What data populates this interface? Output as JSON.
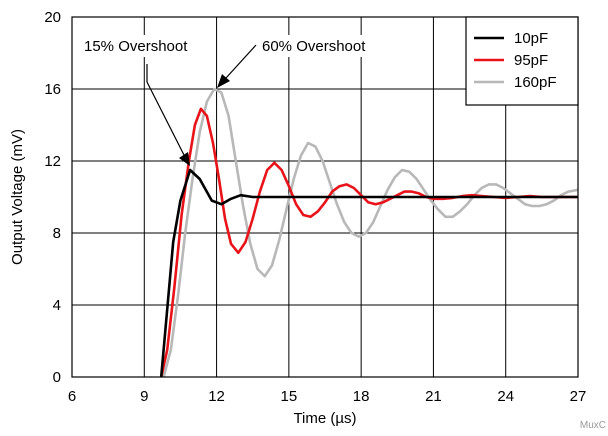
{
  "chart_data": {
    "type": "line",
    "xlabel": "Time (µs)",
    "ylabel": "Output Voltage (mV)",
    "xlim": [
      6,
      27
    ],
    "ylim": [
      0,
      20
    ],
    "xticks": [
      6,
      9,
      12,
      15,
      18,
      21,
      24,
      27
    ],
    "yticks": [
      0,
      4,
      8,
      12,
      16,
      20
    ],
    "grid": true,
    "legend_position": "top-right",
    "annotations": [
      {
        "text": "15% Overshoot"
      },
      {
        "text": "60% Overshoot"
      }
    ],
    "series": [
      {
        "name": "10pF",
        "color": "#000000",
        "x": [
          9.7,
          9.9,
          10.2,
          10.5,
          10.9,
          11.3,
          11.8,
          12.2,
          12.6,
          13.0,
          13.5,
          14.0,
          15.0,
          16.0,
          17.0,
          18.0,
          19.0,
          20.0,
          21.0,
          22.0,
          23.0,
          24.0,
          25.0,
          26.0,
          27.0
        ],
        "values": [
          0.0,
          3.0,
          7.5,
          9.8,
          11.5,
          11.0,
          9.8,
          9.6,
          9.9,
          10.1,
          10.0,
          10.0,
          10.0,
          10.0,
          10.0,
          10.0,
          10.0,
          10.0,
          10.0,
          10.0,
          10.0,
          10.0,
          10.0,
          10.0,
          10.0
        ]
      },
      {
        "name": "95pF",
        "color": "#e8141a",
        "x": [
          9.7,
          9.95,
          10.25,
          10.55,
          10.85,
          11.1,
          11.35,
          11.6,
          11.85,
          12.1,
          12.35,
          12.6,
          12.9,
          13.2,
          13.5,
          13.8,
          14.1,
          14.4,
          14.7,
          15.0,
          15.3,
          15.6,
          15.9,
          16.2,
          16.5,
          16.8,
          17.1,
          17.4,
          17.7,
          18.0,
          18.3,
          18.6,
          18.9,
          19.2,
          19.5,
          19.8,
          20.1,
          20.4,
          20.7,
          21.0,
          21.4,
          21.8,
          22.2,
          22.6,
          23.0,
          23.5,
          24.0,
          24.5,
          25.0,
          25.5,
          26.0,
          26.5,
          27.0
        ],
        "values": [
          0.0,
          1.5,
          5.0,
          9.0,
          12.0,
          14.0,
          14.9,
          14.5,
          13.0,
          11.0,
          8.8,
          7.4,
          6.9,
          7.5,
          8.8,
          10.3,
          11.5,
          11.9,
          11.5,
          10.6,
          9.6,
          9.0,
          8.9,
          9.2,
          9.7,
          10.3,
          10.6,
          10.7,
          10.5,
          10.1,
          9.7,
          9.6,
          9.7,
          9.9,
          10.1,
          10.3,
          10.3,
          10.2,
          10.0,
          9.9,
          9.9,
          9.95,
          10.05,
          10.1,
          10.05,
          10.0,
          9.95,
          10.0,
          10.05,
          10.0,
          10.0,
          10.0,
          10.0
        ]
      },
      {
        "name": "160pF",
        "color": "#b8b8b8",
        "x": [
          9.8,
          10.1,
          10.4,
          10.7,
          11.0,
          11.3,
          11.6,
          11.9,
          12.2,
          12.5,
          12.8,
          13.1,
          13.4,
          13.7,
          14.0,
          14.3,
          14.6,
          14.9,
          15.2,
          15.5,
          15.8,
          16.1,
          16.4,
          16.7,
          17.0,
          17.3,
          17.6,
          17.9,
          18.2,
          18.5,
          18.8,
          19.1,
          19.4,
          19.7,
          20.0,
          20.3,
          20.6,
          20.9,
          21.2,
          21.5,
          21.8,
          22.1,
          22.4,
          22.7,
          23.0,
          23.3,
          23.6,
          23.9,
          24.2,
          24.5,
          24.8,
          25.1,
          25.4,
          25.7,
          26.0,
          26.3,
          26.6,
          27.0
        ],
        "values": [
          0.0,
          1.5,
          4.5,
          8.0,
          11.0,
          13.6,
          15.3,
          16.0,
          15.8,
          14.5,
          12.0,
          9.5,
          7.4,
          6.0,
          5.6,
          6.2,
          7.6,
          9.3,
          11.0,
          12.3,
          13.0,
          12.8,
          12.0,
          10.8,
          9.6,
          8.6,
          8.0,
          7.8,
          8.0,
          8.6,
          9.5,
          10.4,
          11.1,
          11.5,
          11.4,
          11.0,
          10.4,
          9.8,
          9.3,
          8.9,
          8.9,
          9.2,
          9.6,
          10.1,
          10.5,
          10.7,
          10.7,
          10.5,
          10.2,
          9.9,
          9.6,
          9.5,
          9.5,
          9.6,
          9.8,
          10.1,
          10.3,
          10.4
        ]
      }
    ]
  },
  "watermark": "MuxC"
}
